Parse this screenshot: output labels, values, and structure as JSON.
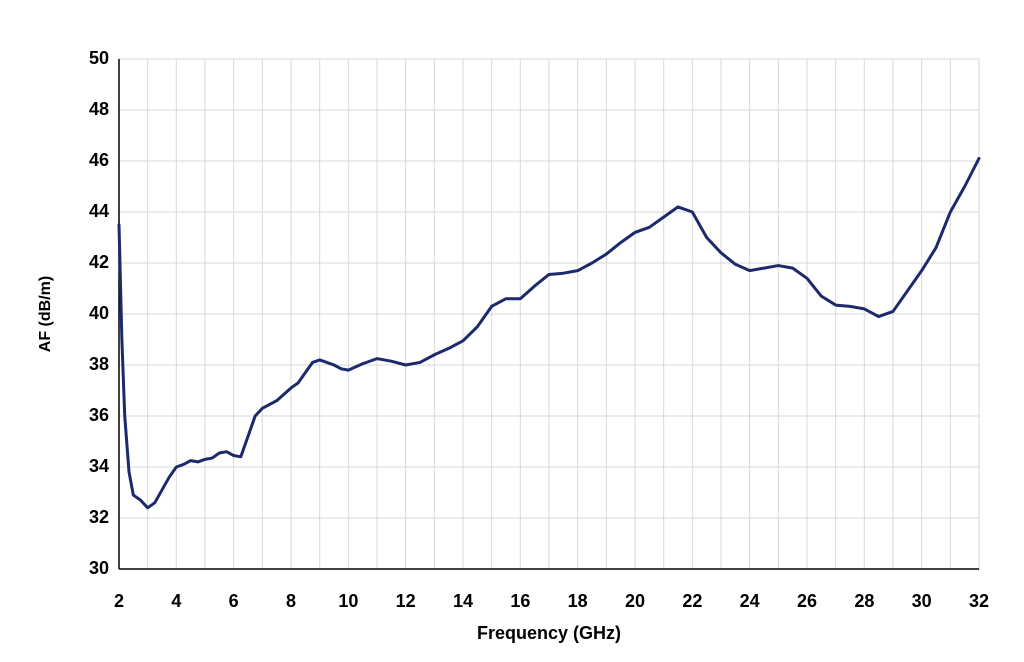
{
  "chart_data": {
    "type": "line",
    "x_label": "Frequency  (GHz)",
    "y_label": "AF (dB/m)",
    "x": [
      2.0,
      2.1,
      2.2,
      2.35,
      2.5,
      2.75,
      3.0,
      3.25,
      3.5,
      3.75,
      4.0,
      4.25,
      4.5,
      4.75,
      5.0,
      5.25,
      5.5,
      5.75,
      6.0,
      6.25,
      6.5,
      6.75,
      7.0,
      7.5,
      8.0,
      8.25,
      8.5,
      8.75,
      9.0,
      9.25,
      9.5,
      9.75,
      10.0,
      10.5,
      11.0,
      11.5,
      12.0,
      12.5,
      13.0,
      13.5,
      14.0,
      14.5,
      15.0,
      15.5,
      16.0,
      16.5,
      17.0,
      17.5,
      18.0,
      18.5,
      19.0,
      19.5,
      20.0,
      20.5,
      21.0,
      21.5,
      22.0,
      22.5,
      23.0,
      23.5,
      24.0,
      24.5,
      25.0,
      25.5,
      26.0,
      26.5,
      27.0,
      27.5,
      28.0,
      28.5,
      29.0,
      29.5,
      30.0,
      30.5,
      31.0,
      31.5,
      32.0
    ],
    "series": [
      {
        "name": "AF",
        "color": "#1c2a6b",
        "values": [
          43.5,
          39.0,
          36.0,
          33.8,
          32.9,
          32.7,
          32.4,
          32.6,
          33.1,
          33.6,
          34.0,
          34.1,
          34.25,
          34.2,
          34.3,
          34.35,
          34.55,
          34.6,
          34.45,
          34.4,
          35.2,
          36.0,
          36.3,
          36.6,
          37.1,
          37.3,
          37.7,
          38.1,
          38.2,
          38.1,
          38.0,
          37.85,
          37.8,
          38.05,
          38.25,
          38.15,
          38.0,
          38.1,
          38.4,
          38.65,
          38.95,
          39.5,
          40.3,
          40.6,
          40.6,
          41.1,
          41.55,
          41.6,
          41.7,
          42.0,
          42.35,
          42.8,
          43.2,
          43.4,
          43.8,
          44.2,
          44.0,
          43.0,
          42.4,
          41.95,
          41.7,
          41.8,
          41.9,
          41.8,
          41.4,
          40.7,
          40.35,
          40.3,
          40.2,
          39.9,
          40.1,
          40.9,
          41.7,
          42.6,
          44.0,
          45.0,
          46.1
        ]
      }
    ],
    "xlim": [
      2,
      32
    ],
    "xticks": [
      2,
      4,
      6,
      8,
      10,
      12,
      14,
      16,
      18,
      20,
      22,
      24,
      26,
      28,
      30,
      32
    ],
    "ylim": [
      30,
      50
    ],
    "yticks": [
      30,
      32,
      34,
      36,
      38,
      40,
      42,
      44,
      46,
      48,
      50
    ],
    "grid": true
  }
}
